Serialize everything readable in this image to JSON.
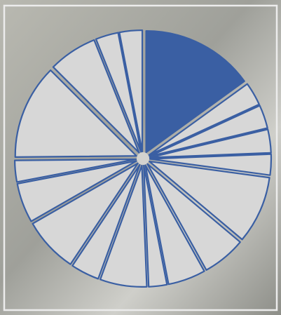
{
  "chart_data": {
    "type": "pie",
    "title": "",
    "exploded": true,
    "values": [
      17.4,
      3.6,
      3.6,
      3.6,
      3.2,
      10.4,
      6.7,
      5.8,
      2.8,
      7.2,
      4.4,
      8.5,
      6.1,
      3.3,
      14.6,
      7.5,
      3.5,
      3.5
    ],
    "highlight_index": 0,
    "colors": {
      "highlight": "#3a5fa3",
      "slice": "#d7d7d7",
      "outline": "#3a5fa3",
      "background": "#a9aaa4"
    }
  }
}
